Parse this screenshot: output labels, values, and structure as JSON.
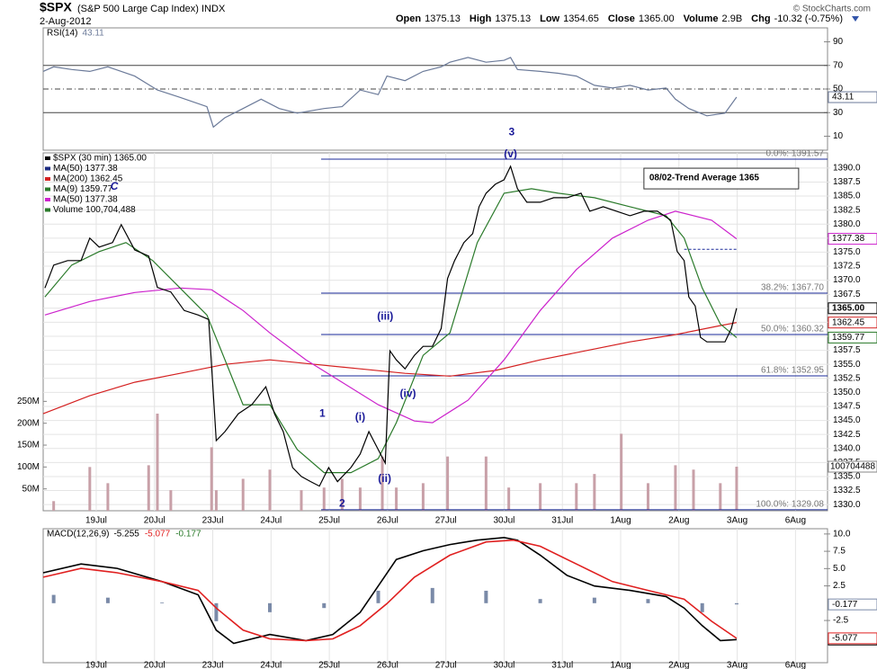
{
  "header": {
    "symbol": "$SPX",
    "desc": "(S&P 500 Large Cap Index) INDX",
    "date": "2-Aug-2012",
    "quote": [
      [
        "Open",
        "1375.13"
      ],
      [
        "High",
        "1375.13"
      ],
      [
        "Low",
        "1354.65"
      ],
      [
        "Close",
        "1365.00"
      ],
      [
        "Volume",
        "2.9B"
      ],
      [
        "Chg",
        "-10.32 (-0.75%)"
      ]
    ],
    "credit": "© StockCharts.com"
  },
  "chart_data": [
    {
      "type": "line",
      "legend_title": "RSI(14)",
      "xlim": [
        -0.91,
        12.55
      ],
      "ylim": [
        -1.8,
        101.8
      ],
      "yticks": [
        10,
        30,
        50,
        70,
        90
      ],
      "ref_lines": [
        70,
        50,
        30
      ],
      "ref_styles": [
        "solid",
        "dashdot",
        "solid"
      ],
      "series": [
        {
          "color": "#6b7a99",
          "x": [
            -0.91,
            -0.73,
            -0.42,
            -0.11,
            0.2,
            0.66,
            1.05,
            1.44,
            1.9,
            2.01,
            2.21,
            2.52,
            2.83,
            3.14,
            3.45,
            3.91,
            4.22,
            4.53,
            4.84,
            4.99,
            5.3,
            5.61,
            5.92,
            6.07,
            6.38,
            6.69,
            7.0,
            7.11,
            7.23,
            7.62,
            7.93,
            8.24,
            8.55,
            8.86,
            9.16,
            9.47,
            9.78,
            9.94,
            10.17,
            10.48,
            10.79,
            10.99
          ],
          "values": [
            64.9,
            68.8,
            66.5,
            64.9,
            68.8,
            61.0,
            49.2,
            42.9,
            35.1,
            17.8,
            25.7,
            33.5,
            41.4,
            33.5,
            29.6,
            33.5,
            35.1,
            49.2,
            45.3,
            61.0,
            57.1,
            64.9,
            68.8,
            72.7,
            76.7,
            72.7,
            74.3,
            76.7,
            66.5,
            64.9,
            63.3,
            61.0,
            53.1,
            50.8,
            53.1,
            49.2,
            50.8,
            41.4,
            33.5,
            27.3,
            29.6,
            43.11
          ]
        }
      ]
    },
    {
      "type": "line",
      "xlim": [
        -0.91,
        12.55
      ],
      "ylim": [
        1328.9,
        1392.7
      ],
      "grid": true,
      "xticks": [
        {
          "value": 0,
          "label": "19Jul"
        },
        {
          "value": 1,
          "label": "20Jul"
        },
        {
          "value": 2,
          "label": "23Jul"
        },
        {
          "value": 3,
          "label": "24Jul"
        },
        {
          "value": 4,
          "label": "25Jul"
        },
        {
          "value": 5,
          "label": "26Jul"
        },
        {
          "value": 6,
          "label": "27Jul"
        },
        {
          "value": 7,
          "label": "30Jul"
        },
        {
          "value": 8,
          "label": "31Jul"
        },
        {
          "value": 9,
          "label": "1Aug"
        },
        {
          "value": 10,
          "label": "2Aug"
        },
        {
          "value": 11,
          "label": "3Aug"
        },
        {
          "value": 12,
          "label": "6Aug"
        }
      ],
      "yticks": [
        {
          "value": 1330,
          "label": "1330.0"
        },
        {
          "value": 1332.5,
          "label": "1332.5"
        },
        {
          "value": 1335,
          "label": "1335.0"
        },
        {
          "value": 1337.5,
          "label": "1337.5"
        },
        {
          "value": 1340,
          "label": "1340.0"
        },
        {
          "value": 1342.5,
          "label": "1342.5"
        },
        {
          "value": 1345,
          "label": "1345.0"
        },
        {
          "value": 1347.5,
          "label": "1347.5"
        },
        {
          "value": 1350,
          "label": "1350.0"
        },
        {
          "value": 1352.5,
          "label": "1352.5"
        },
        {
          "value": 1355,
          "label": "1355.0"
        },
        {
          "value": 1357.5,
          "label": "1357.5"
        },
        {
          "value": 1360,
          "label": "1360.0"
        },
        {
          "value": 1362.5,
          "label": "1362.5"
        },
        {
          "value": 1365,
          "label": "1365.0"
        },
        {
          "value": 1367.5,
          "label": "1367.5"
        },
        {
          "value": 1370,
          "label": "1370.0"
        },
        {
          "value": 1372.5,
          "label": "1372.5"
        },
        {
          "value": 1375,
          "label": "1375.0"
        },
        {
          "value": 1377.5,
          "label": "1377.5"
        },
        {
          "value": 1380,
          "label": "1380.0"
        },
        {
          "value": 1382.5,
          "label": "1382.5"
        },
        {
          "value": 1385,
          "label": "1385.0"
        },
        {
          "value": 1387.5,
          "label": "1387.5"
        },
        {
          "value": 1390,
          "label": "1390.0"
        }
      ],
      "legend": [
        {
          "label": "$SPX (30 min) 1365.00",
          "color": "#000000"
        },
        {
          "label": "MA(50) 1377.38",
          "color": "#1a2a80"
        },
        {
          "label": "MA(200) 1362.45",
          "color": "#d42020"
        },
        {
          "label": "MA(9) 1359.77",
          "color": "#2a7a2a"
        },
        {
          "label": "MA(50) 1377.38",
          "color": "#cc22cc"
        },
        {
          "label": "Volume 100,704,488",
          "color": "#2a7a2a"
        }
      ],
      "series": [
        {
          "color": "#d42020",
          "tag": "1362.45",
          "x": [
            -0.91,
            -0.11,
            0.66,
            1.44,
            2.21,
            2.98,
            3.75,
            4.53,
            5.3,
            6.07,
            6.85,
            7.62,
            8.39,
            9.16,
            9.94,
            10.71,
            10.99
          ],
          "values": [
            1346.2,
            1349.4,
            1351.8,
            1353.4,
            1355.0,
            1355.8,
            1355.0,
            1354.2,
            1353.4,
            1352.9,
            1353.9,
            1355.8,
            1357.4,
            1359.0,
            1360.3,
            1361.9,
            1362.45
          ]
        },
        {
          "color": "#cc22cc",
          "tag": "1377.38",
          "x": [
            -0.88,
            -0.11,
            0.66,
            1.44,
            1.98,
            2.52,
            2.98,
            3.6,
            4.22,
            4.84,
            5.46,
            5.77,
            6.38,
            7.0,
            7.62,
            8.24,
            8.86,
            9.47,
            9.94,
            10.56,
            10.99
          ],
          "values": [
            1363.8,
            1366.2,
            1367.8,
            1368.6,
            1368.3,
            1364.6,
            1360.6,
            1355.8,
            1351.8,
            1347.8,
            1344.9,
            1344.6,
            1348.6,
            1355.8,
            1364.6,
            1371.9,
            1377.5,
            1380.7,
            1382.3,
            1380.7,
            1377.38
          ]
        },
        {
          "color": "#2a7a2a",
          "tag": "1359.77",
          "x": [
            -0.88,
            -0.42,
            0.05,
            0.51,
            0.97,
            1.44,
            1.9,
            2.21,
            2.52,
            2.98,
            3.45,
            3.91,
            4.37,
            4.84,
            5.15,
            5.61,
            6.07,
            6.54,
            7.0,
            7.47,
            7.93,
            8.55,
            9.16,
            9.78,
            10.09,
            10.4,
            10.71,
            10.99
          ],
          "values": [
            1367.0,
            1372.7,
            1375.1,
            1376.7,
            1373.5,
            1368.6,
            1363.8,
            1355.8,
            1347.8,
            1347.8,
            1339.8,
            1335.7,
            1335.7,
            1338.2,
            1344.6,
            1356.6,
            1360.6,
            1376.7,
            1385.5,
            1386.3,
            1385.5,
            1384.7,
            1383.1,
            1381.5,
            1377.5,
            1368.6,
            1362.2,
            1359.77
          ]
        },
        {
          "color": "#000000",
          "tag": "1365.00",
          "x": [
            -0.88,
            -0.73,
            -0.49,
            -0.26,
            -0.11,
            0.05,
            0.28,
            0.43,
            0.66,
            0.9,
            1.05,
            1.28,
            1.51,
            1.75,
            1.93,
            2.06,
            2.21,
            2.44,
            2.67,
            2.91,
            3.06,
            3.21,
            3.37,
            3.52,
            3.68,
            3.83,
            3.99,
            4.14,
            4.37,
            4.53,
            4.68,
            4.84,
            4.96,
            5.04,
            5.15,
            5.3,
            5.46,
            5.61,
            5.77,
            5.92,
            6.03,
            6.15,
            6.31,
            6.46,
            6.57,
            6.69,
            6.85,
            7.0,
            7.11,
            7.23,
            7.39,
            7.62,
            7.85,
            8.08,
            8.32,
            8.47,
            8.7,
            8.93,
            9.16,
            9.4,
            9.63,
            9.86,
            9.97,
            10.09,
            10.17,
            10.28,
            10.37,
            10.48,
            10.63,
            10.79,
            10.9,
            10.99
          ],
          "values": [
            1368.6,
            1372.7,
            1373.5,
            1373.5,
            1377.5,
            1375.9,
            1376.7,
            1379.9,
            1375.4,
            1374.3,
            1368.7,
            1367.9,
            1364.6,
            1363.8,
            1363.0,
            1341.4,
            1343.0,
            1346.2,
            1347.8,
            1351.0,
            1346.2,
            1343.0,
            1336.6,
            1335.0,
            1334.1,
            1333.3,
            1336.6,
            1334.1,
            1336.6,
            1339.0,
            1343.0,
            1339.8,
            1337.4,
            1357.4,
            1355.8,
            1354.2,
            1356.6,
            1358.2,
            1358.2,
            1361.4,
            1370.3,
            1373.5,
            1376.7,
            1378.3,
            1383.1,
            1385.5,
            1387.1,
            1387.9,
            1390.3,
            1386.3,
            1383.9,
            1383.9,
            1384.7,
            1384.7,
            1385.5,
            1382.3,
            1383.1,
            1382.3,
            1381.5,
            1382.3,
            1382.3,
            1380.7,
            1375.1,
            1373.5,
            1367.0,
            1365.4,
            1359.8,
            1359.0,
            1359.0,
            1359.0,
            1361.4,
            1365.0
          ]
        }
      ],
      "volume": {
        "color": "#c8a0a8",
        "tag": "100704488",
        "ylim": [
          0,
          818
        ],
        "yticks": [
          {
            "value": 50,
            "label": "50M"
          },
          {
            "value": 100,
            "label": "100M"
          },
          {
            "value": 150,
            "label": "150M"
          },
          {
            "value": 200,
            "label": "200M"
          },
          {
            "value": 250,
            "label": "250M"
          }
        ],
        "x": [
          -0.73,
          -0.11,
          0.2,
          0.9,
          1.05,
          1.28,
          1.98,
          2.06,
          2.52,
          2.98,
          3.52,
          3.91,
          4.22,
          4.53,
          4.91,
          5.15,
          5.61,
          6.03,
          6.69,
          7.08,
          7.62,
          8.24,
          8.55,
          9.01,
          9.47,
          9.94,
          10.25,
          10.71,
          10.99
        ],
        "values": [
          22,
          100,
          63,
          104,
          222,
          47,
          145,
          47,
          73,
          94,
          47,
          53,
          73,
          53,
          124,
          53,
          63,
          124,
          124,
          53,
          63,
          63,
          84,
          176,
          63,
          104,
          94,
          63,
          100.7
        ]
      },
      "levels_from": 3.86,
      "levels": [
        {
          "value": 1391.57,
          "label": "0.0%: 1391.57"
        },
        {
          "value": 1367.7,
          "label": "38.2%: 1367.70"
        },
        {
          "value": 1360.32,
          "label": "50.0%: 1360.32"
        },
        {
          "value": 1352.95,
          "label": "61.8%: 1352.95"
        },
        {
          "value": 1329.08,
          "label": "100.0%: 1329.08"
        }
      ],
      "dashed_level": {
        "value": 1375.5,
        "x": [
          10.09,
          10.99
        ]
      },
      "annotations": [
        {
          "text": "3",
          "x": 7.13,
          "y": 1396.3
        },
        {
          "text": "(v)",
          "x": 7.11,
          "y": 1392.4
        },
        {
          "text": "(iii)",
          "x": 4.96,
          "y": 1363.5
        },
        {
          "text": "(iv)",
          "x": 5.35,
          "y": 1349.7
        },
        {
          "text": "1",
          "x": 3.88,
          "y": 1346.2
        },
        {
          "text": "(i)",
          "x": 4.53,
          "y": 1345.5
        },
        {
          "text": "(ii)",
          "x": 4.95,
          "y": 1334.5
        },
        {
          "text": "2",
          "x": 4.22,
          "y": 1330.1
        },
        {
          "text": "C",
          "x": 0.31,
          "y": 1386.6
        }
      ],
      "note": {
        "text": "08/02-Trend Average 1365",
        "x": 9.43,
        "y": 1388.2
      }
    },
    {
      "type": "macd",
      "legend_title": "MACD(12,26,9)",
      "xlim": [
        -0.91,
        12.55
      ],
      "ylim": [
        -8.6,
        10.76
      ],
      "xticks": [
        {
          "value": 0,
          "label": "19Jul"
        },
        {
          "value": 1,
          "label": "20Jul"
        },
        {
          "value": 2,
          "label": "23Jul"
        },
        {
          "value": 3,
          "label": "24Jul"
        },
        {
          "value": 4,
          "label": "25Jul"
        },
        {
          "value": 5,
          "label": "26Jul"
        },
        {
          "value": 6,
          "label": "27Jul"
        },
        {
          "value": 7,
          "label": "30Jul"
        },
        {
          "value": 8,
          "label": "31Jul"
        },
        {
          "value": 9,
          "label": "1Aug"
        },
        {
          "value": 10,
          "label": "2Aug"
        },
        {
          "value": 11,
          "label": "3Aug"
        },
        {
          "value": 12,
          "label": "6Aug"
        }
      ],
      "yticks": [
        {
          "value": 10,
          "label": "10.0"
        },
        7.5,
        {
          "value": 5,
          "label": "5.0"
        },
        2.5,
        -2.5
      ],
      "series": [
        {
          "color": "#000000",
          "x": [
            -0.91,
            -0.26,
            0.36,
            1.13,
            1.75,
            2.06,
            2.36,
            2.98,
            3.6,
            4.06,
            4.53,
            4.84,
            5.15,
            5.61,
            6.07,
            6.54,
            7.0,
            7.23,
            7.62,
            8.08,
            8.55,
            9.16,
            9.78,
            10.09,
            10.4,
            10.71,
            10.99
          ],
          "values": [
            4.39,
            5.67,
            5.03,
            3.12,
            1.21,
            -3.89,
            -5.8,
            -4.52,
            -5.41,
            -4.52,
            -1.34,
            2.48,
            6.31,
            7.58,
            8.47,
            9.11,
            9.49,
            9.11,
            6.94,
            4.01,
            2.48,
            1.85,
            0.96,
            -0.7,
            -3.25,
            -5.41,
            -5.255
          ]
        },
        {
          "color": "#e02020",
          "x": [
            -0.91,
            -0.26,
            0.36,
            1.13,
            1.75,
            2.06,
            2.52,
            2.98,
            3.6,
            4.06,
            4.53,
            4.99,
            5.46,
            6.07,
            6.69,
            7.16,
            7.62,
            8.24,
            8.86,
            9.47,
            10.09,
            10.56,
            10.99
          ],
          "values": [
            3.76,
            5.03,
            4.39,
            3.12,
            1.85,
            -0.7,
            -3.89,
            -5.16,
            -5.41,
            -5.16,
            -3.25,
            -0.06,
            3.76,
            6.94,
            8.85,
            9.11,
            8.22,
            5.67,
            3.12,
            1.85,
            0.57,
            -2.61,
            -5.077
          ]
        }
      ],
      "histogram": {
        "color": "#7a8aa8",
        "x": [
          -0.73,
          0.2,
          1.13,
          2.06,
          2.98,
          3.91,
          4.84,
          5.77,
          6.69,
          7.62,
          8.55,
          9.47,
          10.4,
          10.99
        ],
        "values": [
          1.2,
          0.8,
          0.1,
          -2.6,
          -1.3,
          -0.7,
          1.8,
          2.2,
          1.8,
          0.6,
          0.8,
          0.6,
          -1.3,
          -0.177
        ]
      }
    }
  ]
}
